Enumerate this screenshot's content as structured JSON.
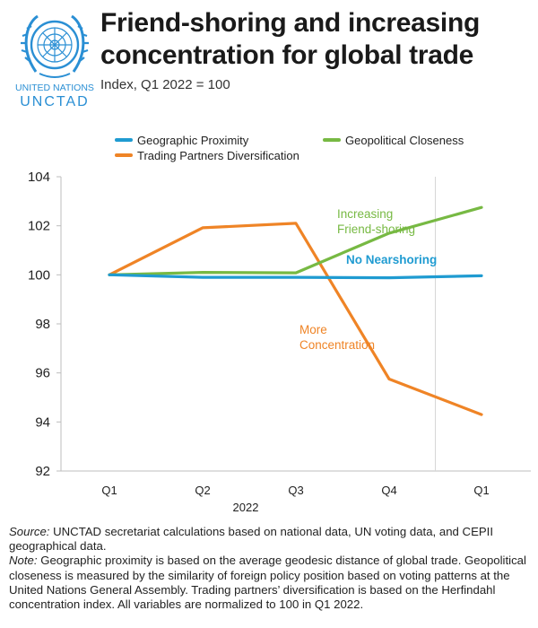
{
  "header": {
    "title_line1": "Friend-shoring and increasing",
    "title_line2": "concentration for global trade",
    "subtitle": "Index, Q1 2022 = 100",
    "logo_text_top": "UNITED NATIONS",
    "logo_text_bottom": "UNCTAD"
  },
  "colors": {
    "geographic": "#1f9bd1",
    "geopolitical": "#77b943",
    "trading": "#ef8426",
    "unblue": "#2a8fd4"
  },
  "chart_data": {
    "type": "line",
    "title": "Friend-shoring and increasing concentration for global trade",
    "ylabel": "Index, Q1 2022 = 100",
    "xlabel": "2022",
    "categories": [
      "Q1",
      "Q2",
      "Q3",
      "Q4",
      "Q1"
    ],
    "year_label": "2022",
    "ylim": [
      92,
      104
    ],
    "yticks": [
      92,
      94,
      96,
      98,
      100,
      102,
      104
    ],
    "series": [
      {
        "name": "Geographic Proximity",
        "color": "#1f9bd1",
        "values": [
          100.0,
          99.9,
          99.9,
          99.88,
          99.96
        ]
      },
      {
        "name": "Geopolitical Closeness",
        "color": "#77b943",
        "values": [
          100.0,
          100.1,
          100.08,
          101.7,
          102.75
        ]
      },
      {
        "name": "Trading Partners Diversification",
        "color": "#ef8426",
        "values": [
          100.0,
          101.92,
          102.1,
          95.75,
          94.3
        ]
      }
    ],
    "annotations": [
      {
        "lines": [
          "Increasing",
          "Friend-shoring"
        ],
        "color": "#77b943"
      },
      {
        "lines": [
          "No Nearshoring"
        ],
        "color": "#1f9bd1"
      },
      {
        "lines": [
          "More",
          "Concentration"
        ],
        "color": "#ef8426"
      }
    ],
    "legend_position": "top"
  },
  "notes": {
    "source_label": "Source:",
    "source_text": " UNCTAD secretariat calculations based on national data, UN voting data, and CEPII geographical data.",
    "note_label": "Note:",
    "note_text": " Geographic proximity is based on the average geodesic distance of global trade. Geopolitical closeness is measured by the similarity of foreign policy position based on voting patterns at the United Nations General Assembly. Trading partners’ diversification is based on the Herfindahl concentration index. All variables are normalized to 100 in Q1 2022."
  }
}
